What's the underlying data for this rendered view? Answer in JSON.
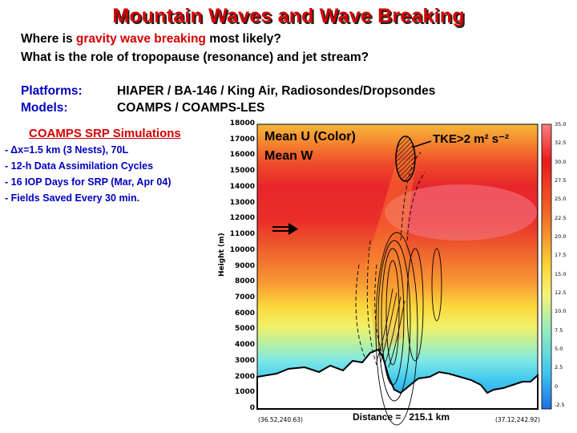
{
  "title": "Mountain Waves and Wave Breaking",
  "questions": {
    "q1_pre": "Where is ",
    "q1_highlight": "gravity wave breaking",
    "q1_post": " most likely?",
    "q2": "What is the role of tropopause (resonance) and jet stream?"
  },
  "platforms": {
    "label": "Platforms:",
    "value": "HIAPER / BA-146 / King Air, Radiosondes/Dropsondes"
  },
  "models": {
    "label": "Models:",
    "value": "COAMPS / COAMPS-LES"
  },
  "simulations": {
    "title": "COAMPS SRP Simulations",
    "bullets": [
      "- Δx=1.5 km (3 Nests), 70L",
      "- 12-h Data Assimilation Cycles",
      "- 16 IOP Days for SRP (Mar, Apr 04)",
      "- Fields Saved Every 30 min."
    ]
  },
  "plot": {
    "overlay_mean_u": "Mean U (Color)",
    "overlay_mean_w": "Mean W",
    "overlay_tke": "TKE>2 m² s⁻²",
    "y_axis_label": "Height (m)",
    "y_ticks": [
      "18000",
      "17000",
      "16000",
      "15000",
      "14000",
      "13000",
      "12000",
      "11000",
      "10000",
      "9000",
      "8000",
      "7000",
      "6000",
      "5000",
      "4000",
      "3000",
      "2000",
      "1000",
      "0"
    ],
    "x_label": "Distance =   215.1 km",
    "left_coord": "(36.52,240.63)",
    "right_coord": "(37.12,242.92)",
    "colorbar_ticks": [
      "35.0",
      "32.5",
      "30.0",
      "27.5",
      "25.0",
      "22.5",
      "20.0",
      "17.5",
      "15.0",
      "12.5",
      "10.0",
      "7.5",
      "5.0",
      "2.5",
      "0",
      "-2.5"
    ]
  }
}
